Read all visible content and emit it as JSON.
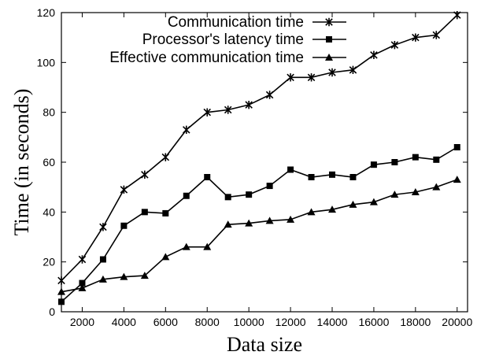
{
  "chart_data": {
    "type": "line",
    "xlabel": "Data size",
    "ylabel": "Time (in seconds)",
    "xlim": [
      1000,
      20500
    ],
    "ylim": [
      0,
      120
    ],
    "x_ticks": [
      2000,
      4000,
      6000,
      8000,
      10000,
      12000,
      14000,
      16000,
      18000,
      20000
    ],
    "y_ticks": [
      0,
      20,
      40,
      60,
      80,
      100,
      120
    ],
    "grid": false,
    "legend_position": "top-right",
    "x": [
      1000,
      2000,
      3000,
      4000,
      5000,
      6000,
      7000,
      8000,
      9000,
      10000,
      11000,
      12000,
      13000,
      14000,
      15000,
      16000,
      17000,
      18000,
      19000,
      20000
    ],
    "series": [
      {
        "name": "Communication time",
        "marker": "star",
        "values": [
          12.5,
          21,
          34,
          49,
          55,
          62,
          73,
          80,
          81,
          83,
          87,
          94,
          94,
          96,
          97,
          103,
          107,
          110,
          111,
          119
        ]
      },
      {
        "name": "Processor's latency time",
        "marker": "square",
        "values": [
          4,
          11.5,
          21,
          34.5,
          40,
          39.5,
          46.5,
          54,
          46,
          47,
          50.5,
          57,
          54,
          55,
          54,
          59,
          60,
          62,
          61,
          66
        ]
      },
      {
        "name": "Effective communication time",
        "marker": "triangle",
        "values": [
          8,
          9.5,
          13,
          14,
          14.5,
          22,
          26,
          26,
          35,
          35.5,
          36.5,
          37,
          40,
          41,
          43,
          44,
          47,
          48,
          50,
          53
        ]
      }
    ]
  }
}
